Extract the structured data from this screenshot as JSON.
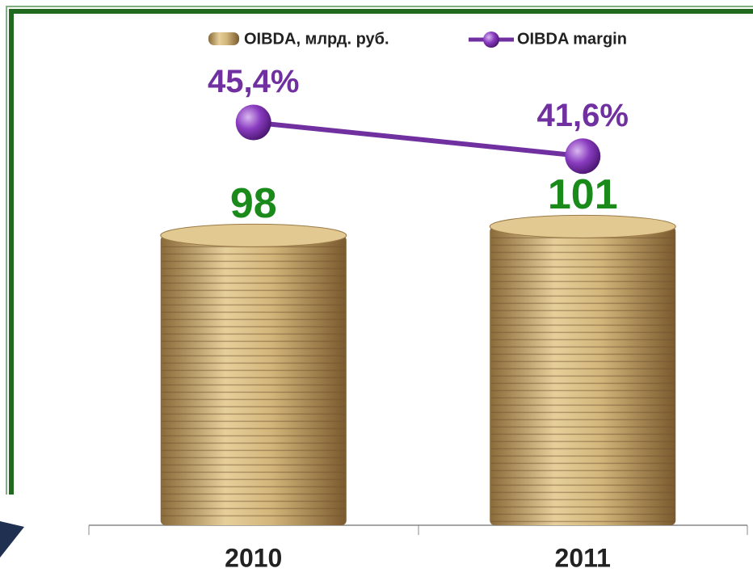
{
  "chart_data": {
    "type": "bar",
    "categories": [
      "2010",
      "2011"
    ],
    "series": [
      {
        "name": "OIBDA, млрд. руб.",
        "type": "bar",
        "color": "#c9a865",
        "values": [
          98,
          101
        ]
      },
      {
        "name": "OIBDA margin",
        "type": "line",
        "axis": "y2",
        "color": "#7030a0",
        "values": [
          45.4,
          41.6
        ],
        "value_labels": [
          "45,4%",
          "41,6%"
        ]
      }
    ],
    "ylim": [
      0,
      150
    ],
    "y2lim": [
      0,
      50
    ],
    "legend": "top"
  }
}
